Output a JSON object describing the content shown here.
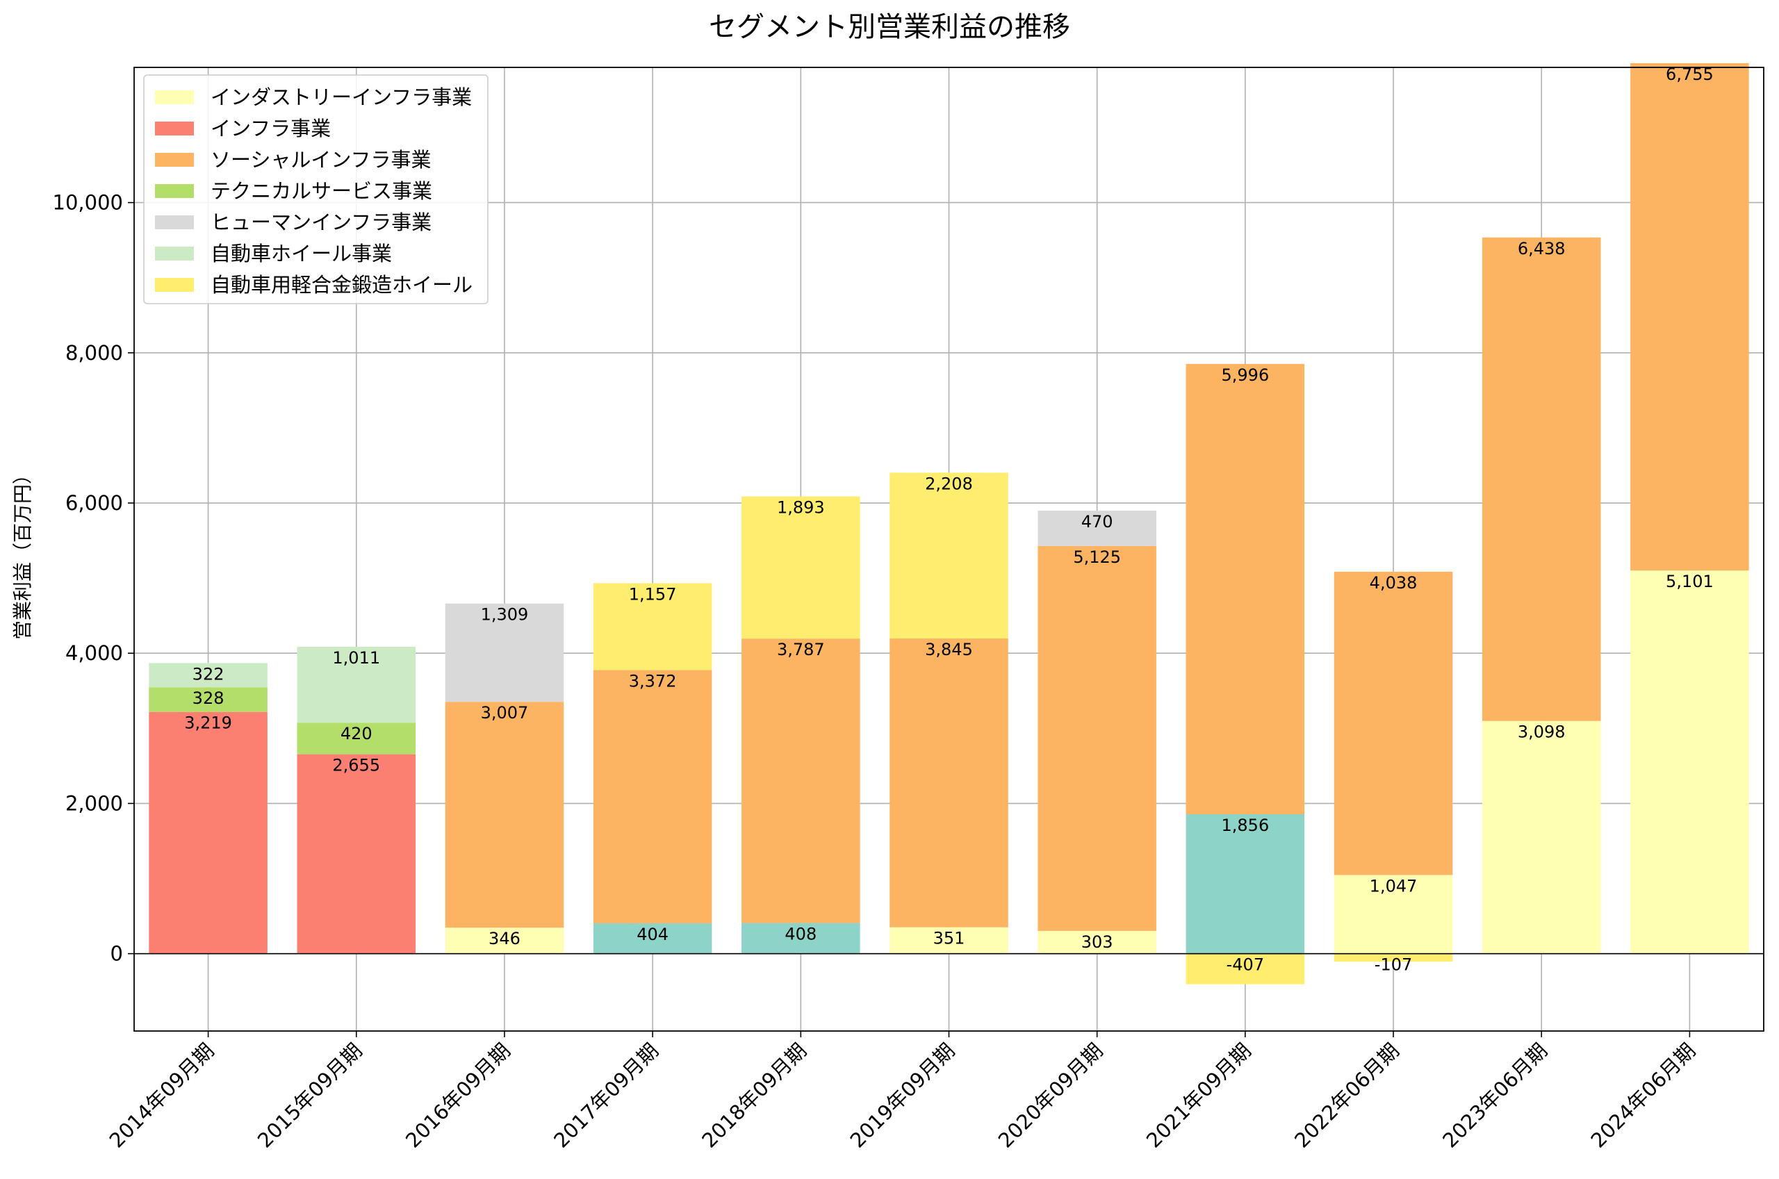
{
  "chart_data": {
    "type": "bar",
    "stacked": true,
    "title": "セグメント別営業利益の推移",
    "xlabel": "",
    "ylabel": "営業利益（百万円）",
    "ylim": [
      -1030,
      11800
    ],
    "yticks": [
      0,
      2000,
      4000,
      6000,
      8000,
      10000
    ],
    "ytick_labels": [
      "0",
      "2,000",
      "4,000",
      "6,000",
      "8,000",
      "10,000"
    ],
    "grid": true,
    "legend_position": "top-left",
    "categories": [
      "2014年09月期",
      "2015年09月期",
      "2016年09月期",
      "2017年09月期",
      "2018年09月期",
      "2019年09月期",
      "2020年09月期",
      "2021年09月期",
      "2022年06月期",
      "2023年06月期",
      "2024年06月期"
    ],
    "colors": {
      "teal": "#8dd3c7",
      "industry_infra": "#ffffb3",
      "infra": "#fb8072",
      "social_infra": "#fdb462",
      "technical": "#b3de69",
      "human_infra": "#d9d9d9",
      "auto_wheel": "#ccebc5",
      "forged_wheel": "#ffed6f"
    },
    "series": [
      {
        "color_key": "teal",
        "values": [
          null,
          null,
          null,
          404,
          408,
          null,
          null,
          1856,
          null,
          null,
          null
        ]
      },
      {
        "name": "インダストリーインフラ事業",
        "color_key": "industry_infra",
        "values": [
          null,
          null,
          346,
          null,
          null,
          351,
          303,
          null,
          1047,
          3098,
          5101
        ]
      },
      {
        "name": "インフラ事業",
        "color_key": "infra",
        "values": [
          3219,
          2655,
          null,
          null,
          null,
          null,
          null,
          null,
          null,
          null,
          null
        ]
      },
      {
        "name": "ソーシャルインフラ事業",
        "color_key": "social_infra",
        "values": [
          null,
          null,
          3007,
          3372,
          3787,
          3845,
          5125,
          5996,
          4038,
          6438,
          6755
        ]
      },
      {
        "name": "テクニカルサービス事業",
        "color_key": "technical",
        "values": [
          328,
          420,
          null,
          null,
          null,
          null,
          null,
          null,
          null,
          null,
          null
        ]
      },
      {
        "name": "ヒューマンインフラ事業",
        "color_key": "human_infra",
        "values": [
          null,
          null,
          1309,
          null,
          null,
          null,
          470,
          null,
          null,
          null,
          null
        ]
      },
      {
        "name": "自動車ホイール事業",
        "color_key": "auto_wheel",
        "values": [
          322,
          1011,
          null,
          null,
          null,
          null,
          null,
          null,
          null,
          null,
          null
        ]
      },
      {
        "name": "自動車用軽合金鍛造ホイール",
        "color_key": "forged_wheel",
        "values": [
          null,
          null,
          null,
          1157,
          1893,
          2208,
          null,
          -407,
          -107,
          null,
          null
        ]
      }
    ],
    "data_labels": [
      [
        "3,219",
        "328",
        "322"
      ],
      [
        "2,655",
        "420",
        "1,011"
      ],
      [
        "346",
        "3,007",
        "1,309"
      ],
      [
        "404",
        "3,372",
        "1,157"
      ],
      [
        "408",
        "3,787",
        "1,893"
      ],
      [
        "351",
        "3,845",
        "2,208"
      ],
      [
        "303",
        "5,125",
        "470"
      ],
      [
        "1,856",
        "5,996",
        "-407"
      ],
      [
        "1,047",
        "4,038",
        "-107"
      ],
      [
        "3,098",
        "6,438"
      ],
      [
        "5,101",
        "6,755"
      ]
    ]
  }
}
